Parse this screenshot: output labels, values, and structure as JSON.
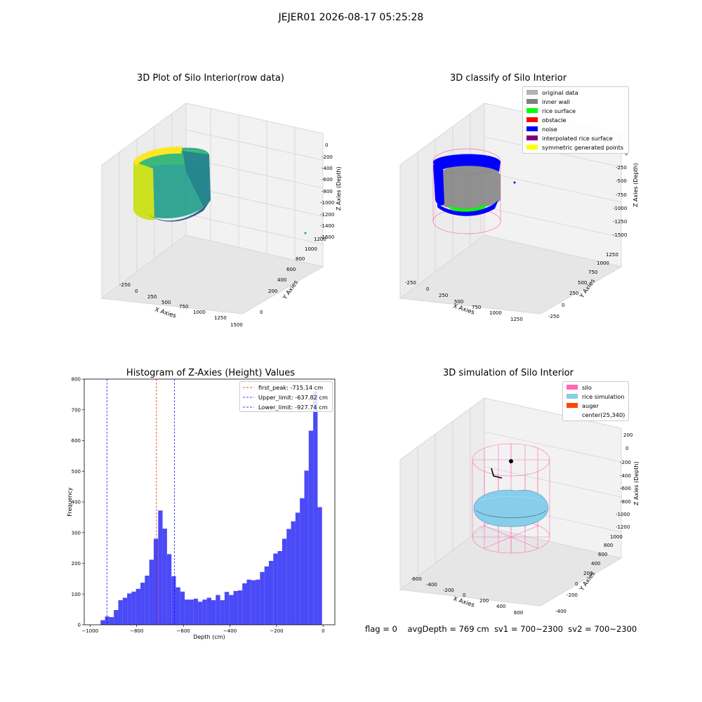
{
  "suptitle": "JEJER01 2026-08-17 05:25:28",
  "panels": {
    "raw": {
      "title": "3D Plot of Silo Interior(row data)",
      "xlabel": "X Axies",
      "ylabel": "Y Axies",
      "zlabel": "Z Axies (Depth)",
      "xticks": [
        "-250",
        "0",
        "250",
        "500",
        "750",
        "1000",
        "1250",
        "1500"
      ],
      "yticks": [
        "0",
        "200",
        "400",
        "600",
        "800",
        "1000",
        "1200"
      ],
      "zticks": [
        "0",
        "-200",
        "-400",
        "-600",
        "-800",
        "-1000",
        "-1200",
        "-1400",
        "-1600"
      ]
    },
    "classify": {
      "title": "3D classify of Silo Interior",
      "xlabel": "X Axies",
      "ylabel": "Y Axies",
      "zlabel": "Z Axies (Depth)",
      "xticks": [
        "-250",
        "0",
        "250",
        "500",
        "750",
        "1000",
        "1250"
      ],
      "yticks": [
        "-250",
        "0",
        "250",
        "500",
        "750",
        "1000",
        "1250"
      ],
      "zticks": [
        "0",
        "-250",
        "-500",
        "-750",
        "-1000",
        "-1250",
        "-1500"
      ],
      "legend": [
        {
          "label": "original data",
          "color": "#b3b3b3"
        },
        {
          "label": "inner wall",
          "color": "#808080"
        },
        {
          "label": "rice surface",
          "color": "#00ff00"
        },
        {
          "label": "obstacle",
          "color": "#ff0000"
        },
        {
          "label": "noise",
          "color": "#0000ff"
        },
        {
          "label": "interpolated rice surface",
          "color": "#800080"
        },
        {
          "label": "symmetric generated points",
          "color": "#ffff00"
        }
      ]
    },
    "simulation": {
      "title": "3D simulation of Silo Interior",
      "xlabel": "X Axies",
      "ylabel": "Y Axies",
      "zlabel": "Z Axies (Depth)",
      "xticks": [
        "-600",
        "-400",
        "-200",
        "0",
        "200",
        "400",
        "600"
      ],
      "yticks": [
        "-400",
        "-200",
        "0",
        "200",
        "400",
        "600",
        "800",
        "1000"
      ],
      "zticks": [
        "200",
        "0",
        "-200",
        "-400",
        "-600",
        "-800",
        "-1000",
        "-1200"
      ],
      "legend": [
        {
          "label": "silo",
          "color": "#ff69b4"
        },
        {
          "label": "rice simulation",
          "color": "#87ceeb"
        },
        {
          "label": "auger",
          "color": "#ff4500"
        },
        {
          "label": "center(25,340)",
          "color": "#ffffff"
        }
      ]
    }
  },
  "status": {
    "flag": "flag = 0",
    "avg": "avgDepth = 769 cm",
    "sv1": "sv1 = 700~2300",
    "sv2": "sv2 = 700~2300"
  },
  "chart_data": [
    {
      "type": "bar",
      "title": "Histogram of Z-Axies (Height) Values",
      "xlabel": "Depth (cm)",
      "ylabel": "Frequency",
      "xlim": [
        -1025,
        50
      ],
      "ylim": [
        0,
        800
      ],
      "xticks": [
        -1000,
        -800,
        -600,
        -400,
        -200,
        0
      ],
      "yticks": [
        0,
        100,
        200,
        300,
        400,
        500,
        600,
        700,
        800
      ],
      "bin_width": 19,
      "bin_start": -955,
      "color": "#4a4af7",
      "values": [
        15,
        27,
        25,
        48,
        80,
        88,
        102,
        108,
        117,
        137,
        160,
        212,
        280,
        372,
        313,
        230,
        158,
        122,
        108,
        82,
        82,
        85,
        75,
        82,
        88,
        80,
        97,
        80,
        107,
        97,
        110,
        112,
        135,
        147,
        145,
        147,
        172,
        190,
        208,
        232,
        240,
        280,
        312,
        337,
        365,
        412,
        502,
        632,
        760,
        383
      ],
      "lines": [
        {
          "name": "first_peak",
          "value": -715.14,
          "label": "first_peak: -715.14 cm",
          "color": "#ff0000"
        },
        {
          "name": "Upper_limit",
          "value": -637.82,
          "label": "Upper_limit: -637.82 cm",
          "color": "#0000ff"
        },
        {
          "name": "Lower_limit",
          "value": -927.74,
          "label": "Lower_limit: -927.74 cm",
          "color": "#0000ff"
        }
      ]
    }
  ]
}
